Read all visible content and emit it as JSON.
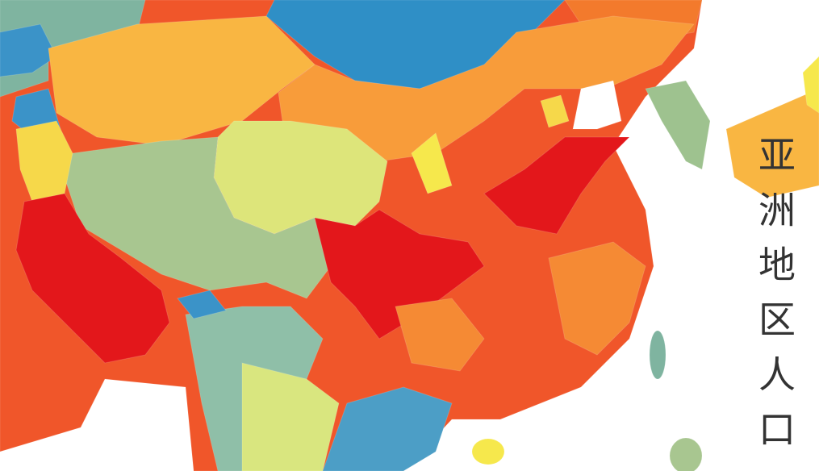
{
  "title": "亚洲地区人口"
}
